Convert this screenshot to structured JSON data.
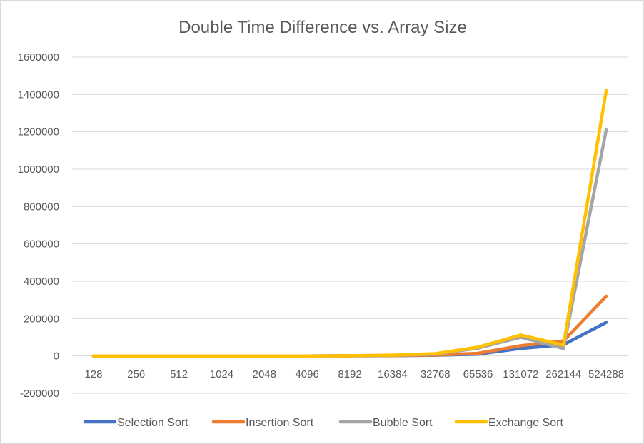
{
  "chart_data": {
    "type": "line",
    "title": "Double Time Difference vs. Array Size",
    "xlabel": "",
    "ylabel": "",
    "categories": [
      "128",
      "256",
      "512",
      "1024",
      "2048",
      "4096",
      "8192",
      "16384",
      "32768",
      "65536",
      "131072",
      "262144",
      "524288"
    ],
    "ylim": [
      -200000,
      1600000
    ],
    "yticks": [
      -200000,
      0,
      200000,
      400000,
      600000,
      800000,
      1000000,
      1200000,
      1400000,
      1600000
    ],
    "grid": true,
    "legend_position": "bottom",
    "series": [
      {
        "name": "Selection Sort",
        "color": "#4472C4",
        "values": [
          0,
          0,
          0,
          0,
          0,
          0,
          500,
          1500,
          4000,
          10000,
          40000,
          60000,
          180000
        ]
      },
      {
        "name": "Insertion Sort",
        "color": "#ED7D31",
        "values": [
          0,
          0,
          0,
          0,
          0,
          0,
          500,
          2000,
          5000,
          14000,
          55000,
          80000,
          320000
        ]
      },
      {
        "name": "Bubble Sort",
        "color": "#A5A5A5",
        "values": [
          0,
          0,
          0,
          0,
          0,
          0,
          1000,
          3000,
          10000,
          42000,
          100000,
          40000,
          1210000
        ]
      },
      {
        "name": "Exchange Sort",
        "color": "#FFC000",
        "values": [
          0,
          0,
          0,
          0,
          0,
          0,
          1000,
          4000,
          12000,
          47000,
          112000,
          58000,
          1420000
        ]
      }
    ]
  }
}
